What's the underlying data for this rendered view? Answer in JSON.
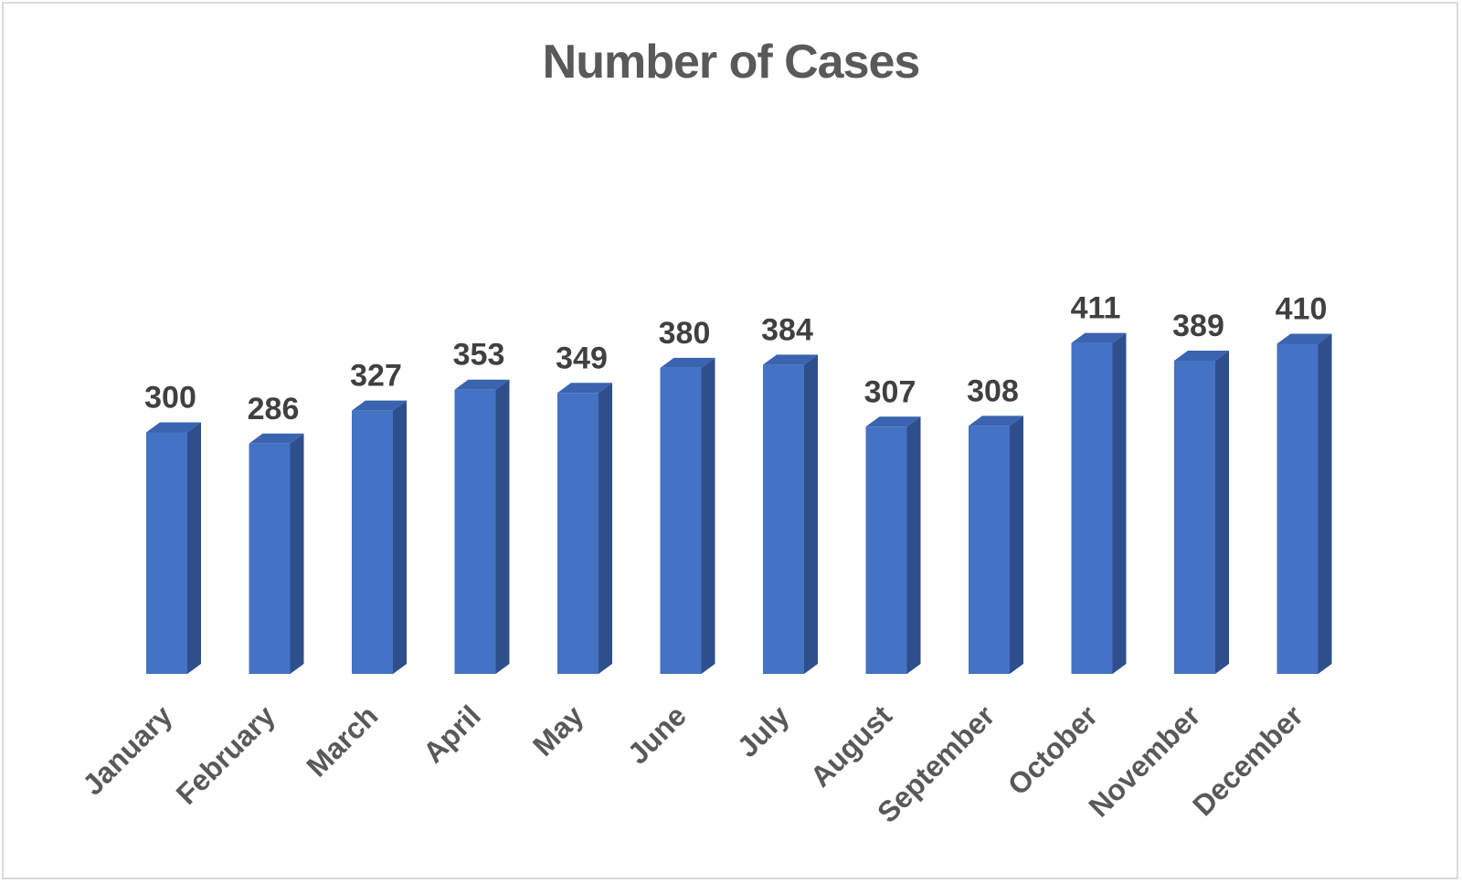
{
  "chart_data": {
    "type": "bar",
    "title": "Number of Cases",
    "categories": [
      "January",
      "February",
      "March",
      "April",
      "May",
      "June",
      "July",
      "August",
      "September",
      "October",
      "November",
      "December"
    ],
    "values": [
      300,
      286,
      327,
      353,
      349,
      380,
      384,
      307,
      308,
      411,
      389,
      410
    ],
    "data_labels": [
      "300",
      "286",
      "327",
      "353",
      "349",
      "380",
      "384",
      "307",
      "308",
      "411",
      "389",
      "410"
    ],
    "xlabel": "",
    "ylabel": "",
    "ylim": [
      0,
      480
    ],
    "grid": false,
    "legend": "none",
    "style": "3d-column",
    "colors": {
      "bar_front": "#4472c4",
      "bar_side": "#2e4f8c",
      "bar_top": "#3a63b0",
      "title": "#595959",
      "data_label": "#404040",
      "tick_label": "#595959",
      "frame": "#d9d9d9"
    }
  }
}
